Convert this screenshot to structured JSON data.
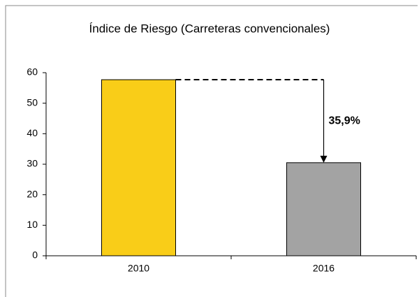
{
  "chart_data": {
    "type": "bar",
    "title": "Índice de Riesgo (Carreteras convencionales)",
    "categories": [
      "2010",
      "2016"
    ],
    "values": [
      57.7,
      30.5
    ],
    "colors": [
      "#f9cd18",
      "#a3a3a3"
    ],
    "annotation": "35,9%",
    "ylim": [
      0,
      60
    ],
    "yticks": [
      0,
      10,
      20,
      30,
      40,
      50,
      60
    ],
    "grid": false
  }
}
